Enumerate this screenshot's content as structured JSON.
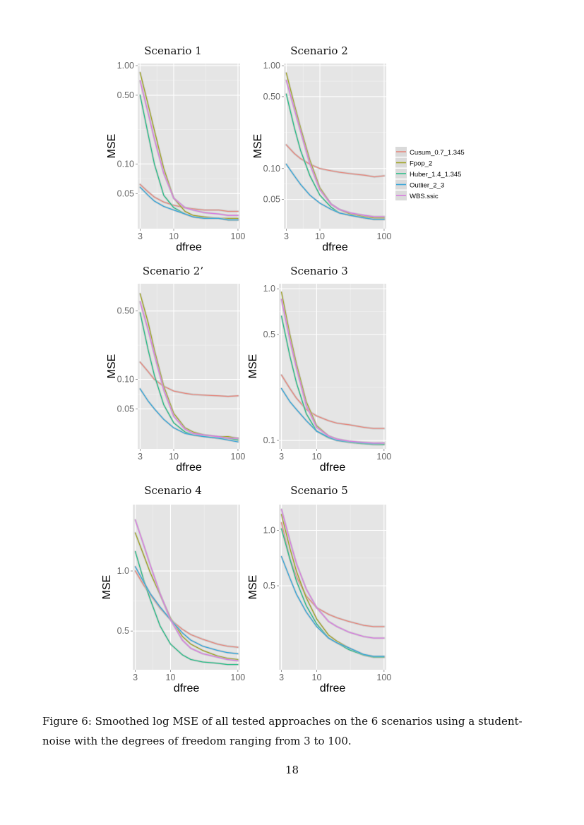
{
  "caption": "Figure 6: Smoothed log MSE of all tested approaches on the 6 scenarios using a student-noise with the degrees of freedom ranging from 3 to 100.",
  "page_number": "18",
  "legend": [
    {
      "name": "Cusum_0.7_1.345",
      "color": "#E58A80"
    },
    {
      "name": "Fpop_2",
      "color": "#A3A62D"
    },
    {
      "name": "Huber_1.4_1.345",
      "color": "#2FBE8A"
    },
    {
      "name": "Outlier_2_3",
      "color": "#3AA7D9"
    },
    {
      "name": "WBS.ssic",
      "color": "#D77CE0"
    }
  ],
  "chart_data": [
    {
      "type": "line",
      "title": "Scenario 1",
      "xlabel": "dfree",
      "ylabel": "MSE",
      "xscale": "log",
      "yscale": "log",
      "xlim": [
        2.75,
        108
      ],
      "ylim": [
        0.022,
        1.05
      ],
      "x_ticks": [
        3,
        10,
        100
      ],
      "x_tick_labels": [
        "3",
        "10",
        "100"
      ],
      "y_ticks": [
        1.0,
        0.5,
        0.1,
        0.05
      ],
      "y_tick_labels": [
        "1.00",
        "0.50",
        "0.10",
        "0.05"
      ],
      "x": [
        3,
        4,
        5,
        7,
        10,
        15,
        20,
        30,
        50,
        70,
        100
      ],
      "series": [
        {
          "name": "Cusum_0.7_1.345",
          "values": [
            0.062,
            0.052,
            0.046,
            0.041,
            0.038,
            0.036,
            0.035,
            0.034,
            0.034,
            0.033,
            0.033
          ]
        },
        {
          "name": "Fpop_2",
          "values": [
            0.85,
            0.4,
            0.22,
            0.09,
            0.045,
            0.033,
            0.03,
            0.029,
            0.028,
            0.028,
            0.028
          ]
        },
        {
          "name": "Huber_1.4_1.345",
          "values": [
            0.5,
            0.2,
            0.1,
            0.048,
            0.036,
            0.031,
            0.029,
            0.028,
            0.028,
            0.027,
            0.027
          ]
        },
        {
          "name": "Outlier_2_3",
          "values": [
            0.058,
            0.048,
            0.042,
            0.037,
            0.034,
            0.031,
            0.029,
            0.028,
            0.028,
            0.027,
            0.027
          ]
        },
        {
          "name": "WBS.ssic",
          "values": [
            0.7,
            0.33,
            0.18,
            0.08,
            0.045,
            0.036,
            0.034,
            0.032,
            0.031,
            0.03,
            0.03
          ]
        }
      ]
    },
    {
      "type": "line",
      "title": "Scenario 2",
      "xlabel": "dfree",
      "ylabel": "MSE",
      "xscale": "log",
      "yscale": "log",
      "xlim": [
        2.75,
        108
      ],
      "ylim": [
        0.026,
        1.05
      ],
      "x_ticks": [
        3,
        10,
        100
      ],
      "x_tick_labels": [
        "3",
        "10",
        "100"
      ],
      "y_ticks": [
        1.0,
        0.5,
        0.1,
        0.05
      ],
      "y_tick_labels": [
        "1.00",
        "0.50",
        "0.10",
        "0.05"
      ],
      "x": [
        3,
        4,
        5,
        7,
        10,
        15,
        20,
        30,
        50,
        70,
        100
      ],
      "series": [
        {
          "name": "Cusum_0.7_1.345",
          "values": [
            0.17,
            0.14,
            0.125,
            0.11,
            0.1,
            0.095,
            0.092,
            0.089,
            0.086,
            0.083,
            0.085
          ]
        },
        {
          "name": "Fpop_2",
          "values": [
            0.85,
            0.42,
            0.25,
            0.12,
            0.065,
            0.045,
            0.04,
            0.036,
            0.034,
            0.033,
            0.033
          ]
        },
        {
          "name": "Huber_1.4_1.345",
          "values": [
            0.53,
            0.25,
            0.15,
            0.085,
            0.055,
            0.042,
            0.037,
            0.035,
            0.033,
            0.032,
            0.032
          ]
        },
        {
          "name": "Outlier_2_3",
          "values": [
            0.11,
            0.085,
            0.07,
            0.055,
            0.046,
            0.04,
            0.037,
            0.035,
            0.033,
            0.032,
            0.032
          ]
        },
        {
          "name": "WBS.ssic",
          "values": [
            0.72,
            0.38,
            0.23,
            0.11,
            0.062,
            0.045,
            0.04,
            0.037,
            0.035,
            0.034,
            0.034
          ]
        }
      ]
    },
    {
      "type": "line",
      "title": "Scenario 2’",
      "xlabel": "dfree",
      "ylabel": "MSE",
      "xscale": "log",
      "yscale": "log",
      "xlim": [
        2.75,
        108
      ],
      "ylim": [
        0.0195,
        0.95
      ],
      "x_ticks": [
        3,
        10,
        100
      ],
      "x_tick_labels": [
        "3",
        "10",
        "100"
      ],
      "y_ticks": [
        0.5,
        0.1,
        0.05
      ],
      "y_tick_labels": [
        "0.50",
        "0.10",
        "0.05"
      ],
      "x": [
        3,
        4,
        5,
        7,
        10,
        15,
        20,
        30,
        50,
        70,
        100
      ],
      "series": [
        {
          "name": "Cusum_0.7_1.345",
          "values": [
            0.15,
            0.12,
            0.1,
            0.085,
            0.076,
            0.072,
            0.07,
            0.069,
            0.068,
            0.067,
            0.068
          ]
        },
        {
          "name": "Fpop_2",
          "values": [
            0.75,
            0.38,
            0.2,
            0.085,
            0.045,
            0.032,
            0.029,
            0.027,
            0.026,
            0.026,
            0.025
          ]
        },
        {
          "name": "Huber_1.4_1.345",
          "values": [
            0.48,
            0.2,
            0.11,
            0.055,
            0.036,
            0.029,
            0.027,
            0.026,
            0.025,
            0.025,
            0.024
          ]
        },
        {
          "name": "Outlier_2_3",
          "values": [
            0.08,
            0.06,
            0.05,
            0.039,
            0.032,
            0.028,
            0.027,
            0.026,
            0.025,
            0.024,
            0.023
          ]
        },
        {
          "name": "WBS.ssic",
          "values": [
            0.62,
            0.32,
            0.18,
            0.078,
            0.042,
            0.031,
            0.028,
            0.027,
            0.026,
            0.025,
            0.025
          ]
        }
      ]
    },
    {
      "type": "line",
      "title": "Scenario 3",
      "xlabel": "dfree",
      "ylabel": "MSE",
      "xscale": "log",
      "yscale": "log",
      "xlim": [
        2.75,
        108
      ],
      "ylim": [
        0.088,
        1.08
      ],
      "x_ticks": [
        3,
        10,
        100
      ],
      "x_tick_labels": [
        "3",
        "10",
        "100"
      ],
      "y_ticks": [
        1.0,
        0.5,
        0.1
      ],
      "y_tick_labels": [
        "1.0",
        "0.5",
        "0.1"
      ],
      "x": [
        3,
        4,
        5,
        7,
        10,
        15,
        20,
        30,
        50,
        70,
        100
      ],
      "series": [
        {
          "name": "Cusum_0.7_1.345",
          "values": [
            0.27,
            0.22,
            0.19,
            0.16,
            0.145,
            0.135,
            0.13,
            0.127,
            0.122,
            0.12,
            0.12
          ]
        },
        {
          "name": "Fpop_2",
          "values": [
            0.95,
            0.5,
            0.32,
            0.18,
            0.125,
            0.107,
            0.102,
            0.098,
            0.096,
            0.094,
            0.094
          ]
        },
        {
          "name": "Huber_1.4_1.345",
          "values": [
            0.66,
            0.36,
            0.24,
            0.15,
            0.115,
            0.104,
            0.1,
            0.097,
            0.095,
            0.094,
            0.094
          ]
        },
        {
          "name": "Outlier_2_3",
          "values": [
            0.22,
            0.18,
            0.16,
            0.135,
            0.115,
            0.105,
            0.1,
            0.098,
            0.096,
            0.095,
            0.096
          ]
        },
        {
          "name": "WBS.ssic",
          "values": [
            0.85,
            0.46,
            0.3,
            0.17,
            0.122,
            0.107,
            0.102,
            0.099,
            0.097,
            0.096,
            0.096
          ]
        }
      ]
    },
    {
      "type": "line",
      "title": "Scenario 4",
      "xlabel": "dfree",
      "ylabel": "MSE",
      "xscale": "log",
      "yscale": "log",
      "xlim": [
        2.75,
        108
      ],
      "ylim": [
        0.32,
        2.15
      ],
      "x_ticks": [
        3,
        10,
        100
      ],
      "x_tick_labels": [
        "3",
        "10",
        "100"
      ],
      "y_ticks": [
        1.0,
        0.5
      ],
      "y_tick_labels": [
        "1.0",
        "0.5"
      ],
      "x": [
        3,
        4,
        5,
        7,
        10,
        15,
        20,
        30,
        50,
        70,
        100
      ],
      "series": [
        {
          "name": "Cusum_0.7_1.345",
          "values": [
            1.0,
            0.85,
            0.76,
            0.65,
            0.57,
            0.51,
            0.48,
            0.455,
            0.43,
            0.42,
            0.415
          ]
        },
        {
          "name": "Fpop_2",
          "values": [
            1.55,
            1.2,
            0.98,
            0.76,
            0.58,
            0.47,
            0.43,
            0.4,
            0.375,
            0.365,
            0.36
          ]
        },
        {
          "name": "Huber_1.4_1.345",
          "values": [
            1.25,
            0.9,
            0.72,
            0.53,
            0.43,
            0.38,
            0.36,
            0.35,
            0.345,
            0.34,
            0.34
          ]
        },
        {
          "name": "Outlier_2_3",
          "values": [
            1.05,
            0.88,
            0.77,
            0.66,
            0.57,
            0.49,
            0.45,
            0.42,
            0.4,
            0.39,
            0.385
          ]
        },
        {
          "name": "WBS.ssic",
          "values": [
            1.8,
            1.35,
            1.07,
            0.77,
            0.57,
            0.45,
            0.41,
            0.385,
            0.37,
            0.36,
            0.355
          ]
        }
      ]
    },
    {
      "type": "line",
      "title": "Scenario 5",
      "xlabel": "dfree",
      "ylabel": "MSE",
      "xscale": "log",
      "yscale": "log",
      "xlim": [
        2.75,
        108
      ],
      "ylim": [
        0.175,
        1.38
      ],
      "x_ticks": [
        3,
        10,
        100
      ],
      "x_tick_labels": [
        "3",
        "10",
        "100"
      ],
      "y_ticks": [
        1.0,
        0.5
      ],
      "y_tick_labels": [
        "1.0",
        "0.5"
      ],
      "x": [
        3,
        4,
        5,
        7,
        10,
        15,
        20,
        30,
        50,
        70,
        100
      ],
      "series": [
        {
          "name": "Cusum_0.7_1.345",
          "values": [
            1.1,
            0.7,
            0.56,
            0.44,
            0.38,
            0.35,
            0.335,
            0.32,
            0.305,
            0.3,
            0.3
          ]
        },
        {
          "name": "Fpop_2",
          "values": [
            1.22,
            0.8,
            0.6,
            0.43,
            0.33,
            0.27,
            0.25,
            0.23,
            0.21,
            0.205,
            0.205
          ]
        },
        {
          "name": "Huber_1.4_1.345",
          "values": [
            1.02,
            0.7,
            0.53,
            0.39,
            0.31,
            0.26,
            0.245,
            0.225,
            0.21,
            0.205,
            0.205
          ]
        },
        {
          "name": "Outlier_2_3",
          "values": [
            0.72,
            0.55,
            0.45,
            0.36,
            0.3,
            0.26,
            0.245,
            0.23,
            0.212,
            0.207,
            0.207
          ]
        },
        {
          "name": "WBS.ssic",
          "values": [
            1.3,
            0.88,
            0.66,
            0.48,
            0.38,
            0.32,
            0.3,
            0.28,
            0.265,
            0.26,
            0.26
          ]
        }
      ]
    }
  ]
}
